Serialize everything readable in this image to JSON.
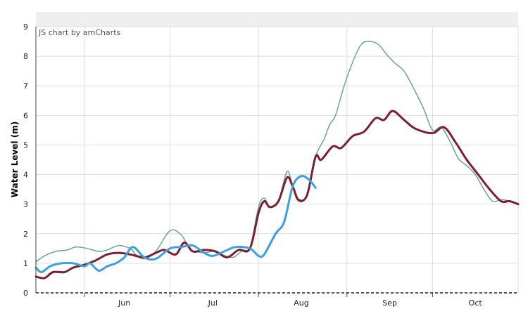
{
  "chart_data": {
    "type": "line",
    "credit": "JS chart by amCharts",
    "ylabel": "Water Level (m)",
    "ylim": [
      0,
      9
    ],
    "yticks": [
      0,
      1,
      2,
      3,
      4,
      5,
      6,
      7,
      8,
      9
    ],
    "xlim": [
      "2019-05-15",
      "2019-10-31"
    ],
    "month_labels": [
      {
        "label": "Jun",
        "date": "2019-06-15"
      },
      {
        "label": "Jul",
        "date": "2019-07-16"
      },
      {
        "label": "Aug",
        "date": "2019-08-16"
      },
      {
        "label": "Sep",
        "date": "2019-09-16"
      },
      {
        "label": "Oct",
        "date": "2019-10-16"
      }
    ],
    "month_gridlines": [
      "2019-06-01",
      "2019-07-01",
      "2019-08-01",
      "2019-09-01",
      "2019-10-01"
    ],
    "grid": true,
    "colors": {
      "teal": "#6aa39a",
      "maroon": "#7b1f33",
      "blue": "#3d9ee0",
      "grid": "#dddddd",
      "header": "#efefef",
      "axis": "#444444"
    },
    "series": [
      {
        "color": "#6aa39a",
        "x": [
          "2019-05-15",
          "2019-05-18",
          "2019-05-22",
          "2019-05-26",
          "2019-05-29",
          "2019-06-02",
          "2019-06-06",
          "2019-06-09",
          "2019-06-13",
          "2019-06-17",
          "2019-06-19",
          "2019-06-22",
          "2019-06-26",
          "2019-07-01",
          "2019-07-05",
          "2019-07-08",
          "2019-07-10",
          "2019-07-13",
          "2019-07-16",
          "2019-07-19",
          "2019-07-23",
          "2019-07-26",
          "2019-07-29",
          "2019-08-01",
          "2019-08-03",
          "2019-08-05",
          "2019-08-08",
          "2019-08-11",
          "2019-08-13",
          "2019-08-15",
          "2019-08-18",
          "2019-08-21",
          "2019-08-24",
          "2019-08-26",
          "2019-08-28",
          "2019-08-31",
          "2019-09-03",
          "2019-09-06",
          "2019-09-09",
          "2019-09-12",
          "2019-09-15",
          "2019-09-18",
          "2019-09-21",
          "2019-09-25",
          "2019-09-28",
          "2019-10-01",
          "2019-10-04",
          "2019-10-07",
          "2019-10-10",
          "2019-10-13",
          "2019-10-16",
          "2019-10-19",
          "2019-10-22",
          "2019-10-25",
          "2019-10-28",
          "2019-10-31"
        ],
        "y": [
          1.05,
          1.25,
          1.4,
          1.45,
          1.55,
          1.5,
          1.4,
          1.45,
          1.6,
          1.5,
          1.3,
          1.15,
          1.4,
          2.1,
          1.95,
          1.45,
          1.4,
          1.35,
          1.4,
          1.3,
          1.2,
          1.4,
          1.5,
          2.9,
          3.2,
          2.9,
          3.1,
          4.1,
          3.6,
          3.1,
          3.3,
          4.6,
          5.2,
          5.7,
          6.0,
          7.0,
          7.8,
          8.4,
          8.5,
          8.4,
          8.05,
          7.75,
          7.5,
          6.8,
          6.2,
          5.5,
          5.6,
          5.15,
          4.55,
          4.3,
          4.0,
          3.5,
          3.1,
          3.15,
          3.1,
          3.0
        ]
      },
      {
        "color": "#7b1f33",
        "x": [
          "2019-05-15",
          "2019-05-18",
          "2019-05-21",
          "2019-05-25",
          "2019-05-28",
          "2019-06-01",
          "2019-06-05",
          "2019-06-09",
          "2019-06-13",
          "2019-06-17",
          "2019-06-22",
          "2019-06-26",
          "2019-06-29",
          "2019-07-03",
          "2019-07-06",
          "2019-07-09",
          "2019-07-13",
          "2019-07-17",
          "2019-07-21",
          "2019-07-25",
          "2019-07-29",
          "2019-08-01",
          "2019-08-03",
          "2019-08-05",
          "2019-08-08",
          "2019-08-11",
          "2019-08-13",
          "2019-08-15",
          "2019-08-18",
          "2019-08-21",
          "2019-08-23",
          "2019-08-27",
          "2019-08-30",
          "2019-09-03",
          "2019-09-07",
          "2019-09-11",
          "2019-09-14",
          "2019-09-17",
          "2019-09-21",
          "2019-09-25",
          "2019-10-01",
          "2019-10-05",
          "2019-10-09",
          "2019-10-13",
          "2019-10-17",
          "2019-10-21",
          "2019-10-25",
          "2019-10-28",
          "2019-10-31"
        ],
        "y": [
          0.55,
          0.5,
          0.7,
          0.7,
          0.85,
          0.95,
          1.1,
          1.3,
          1.35,
          1.3,
          1.2,
          1.35,
          1.45,
          1.3,
          1.7,
          1.4,
          1.45,
          1.4,
          1.2,
          1.45,
          1.5,
          2.7,
          3.1,
          2.9,
          3.1,
          3.9,
          3.6,
          3.15,
          3.3,
          4.6,
          4.5,
          4.95,
          4.9,
          5.3,
          5.45,
          5.9,
          5.85,
          6.15,
          5.85,
          5.55,
          5.4,
          5.6,
          5.1,
          4.5,
          4.0,
          3.5,
          3.1,
          3.1,
          3.0
        ]
      },
      {
        "color": "#3d9ee0",
        "x": [
          "2019-05-15",
          "2019-05-17",
          "2019-05-20",
          "2019-05-24",
          "2019-05-28",
          "2019-06-01",
          "2019-06-03",
          "2019-06-06",
          "2019-06-09",
          "2019-06-12",
          "2019-06-15",
          "2019-06-18",
          "2019-06-22",
          "2019-06-26",
          "2019-07-01",
          "2019-07-05",
          "2019-07-09",
          "2019-07-13",
          "2019-07-16",
          "2019-07-20",
          "2019-07-24",
          "2019-07-29",
          "2019-08-01",
          "2019-08-03",
          "2019-08-07",
          "2019-08-10",
          "2019-08-13",
          "2019-08-16",
          "2019-08-19",
          "2019-08-21"
        ],
        "y": [
          0.85,
          0.7,
          0.9,
          1.0,
          1.0,
          0.9,
          1.0,
          0.75,
          0.9,
          1.0,
          1.2,
          1.55,
          1.2,
          1.15,
          1.5,
          1.55,
          1.6,
          1.35,
          1.25,
          1.4,
          1.55,
          1.5,
          1.25,
          1.3,
          2.0,
          2.4,
          3.6,
          3.95,
          3.8,
          3.55
        ]
      }
    ]
  }
}
